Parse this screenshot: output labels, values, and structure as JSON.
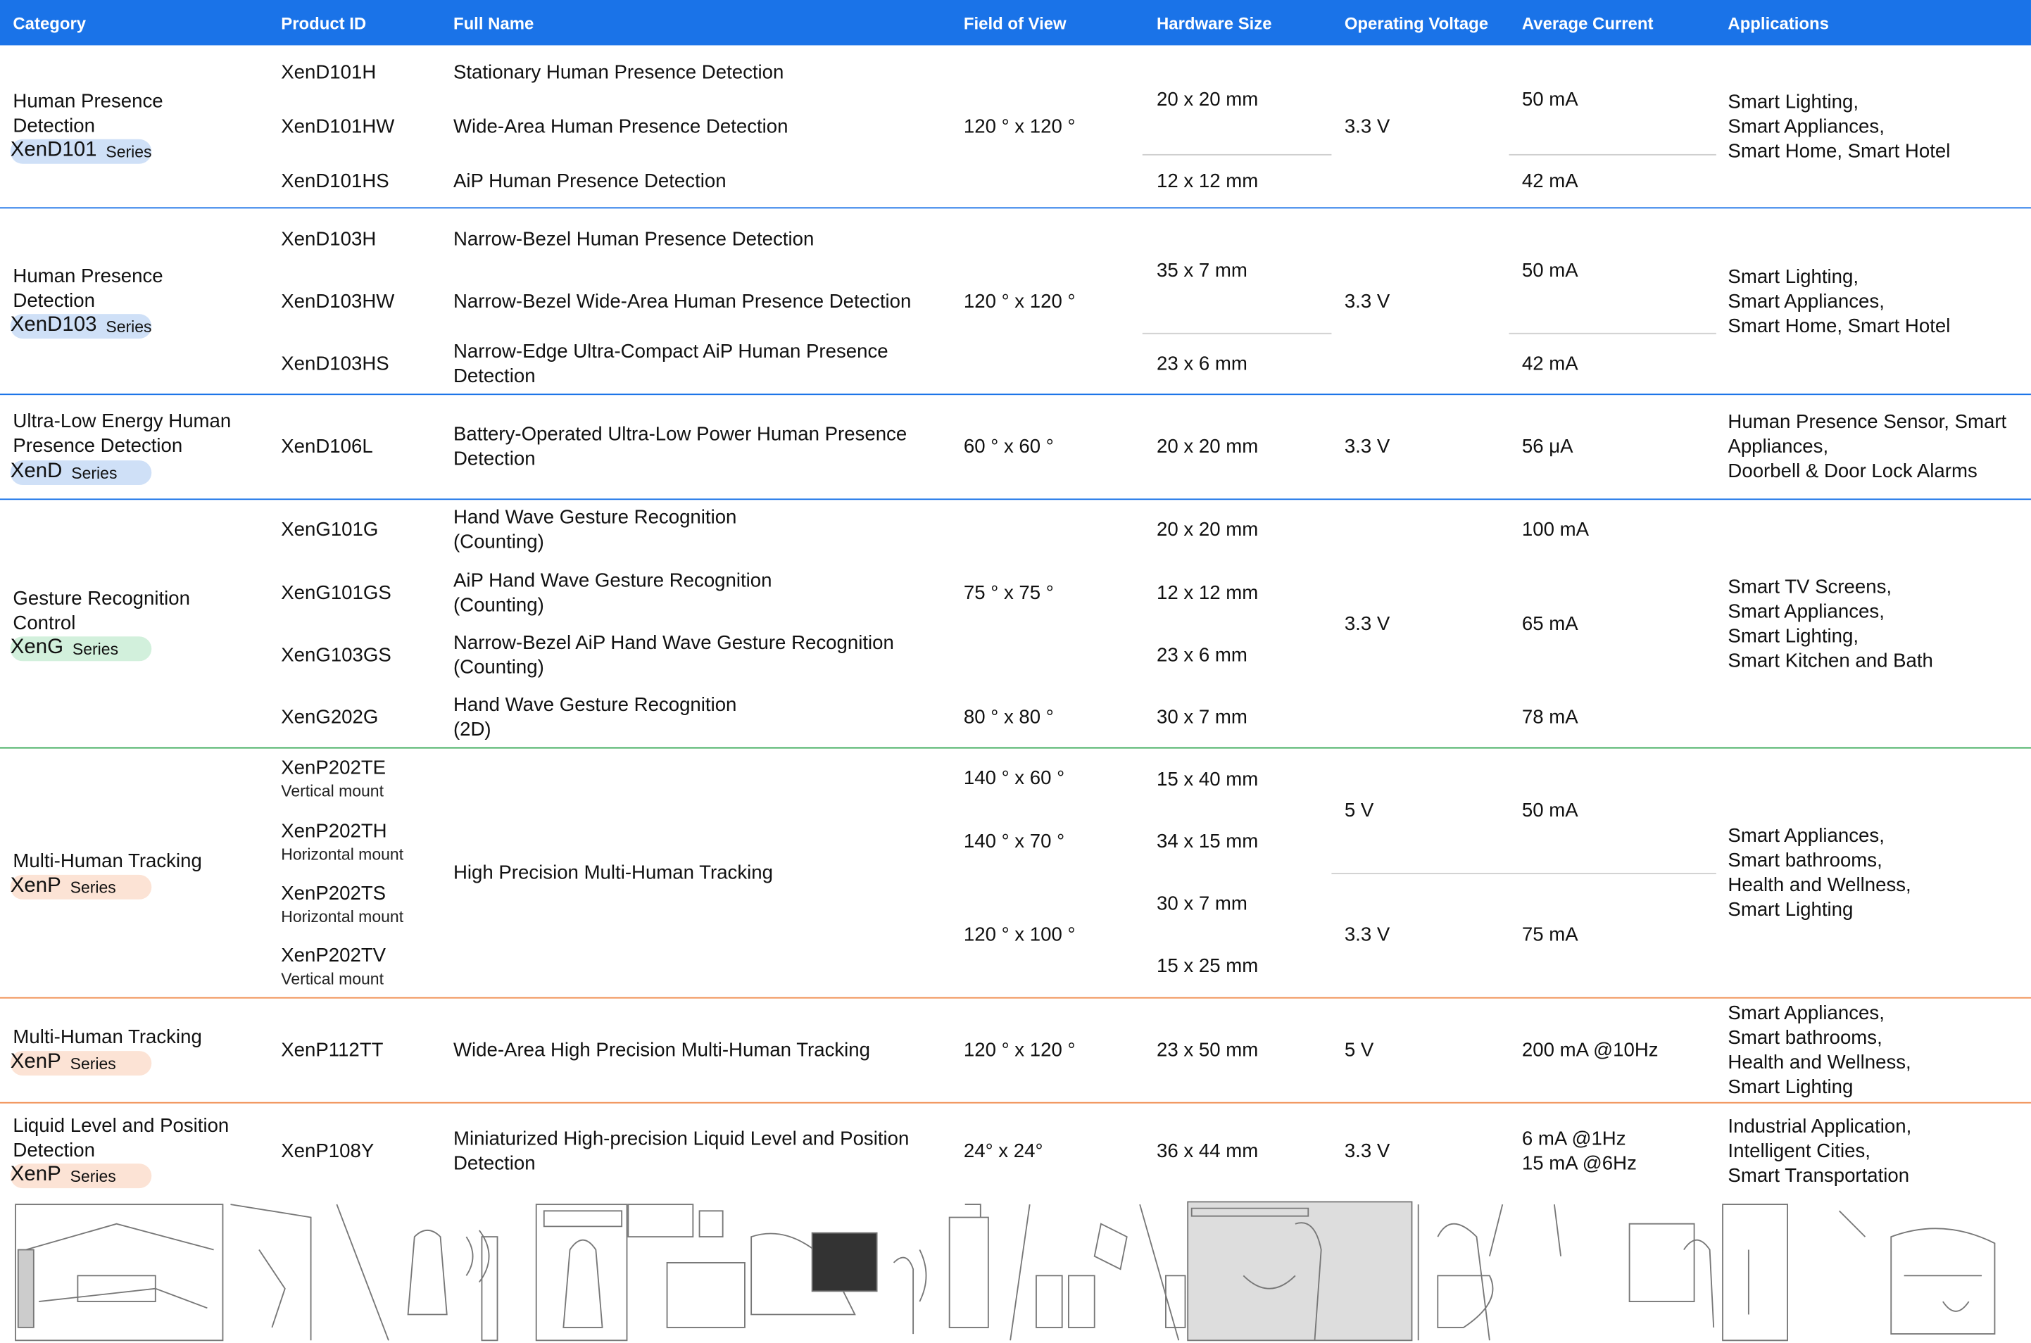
{
  "header": [
    "Category",
    "Product ID",
    "Full Name",
    "Field of View",
    "Hardware Size",
    "Operating Voltage",
    "Average Current",
    "Applications"
  ],
  "series_label": "Series",
  "groups": [
    {
      "category": "Human Presence\nDetection",
      "series": "XenD101",
      "products": [
        "XenD101H",
        "XenD101HW",
        "XenD101HS"
      ],
      "names": [
        "Stationary Human Presence Detection",
        "Wide-Area Human Presence Detection",
        "AiP Human Presence Detection"
      ],
      "fov": [
        "120 ° x  120 °"
      ],
      "sizes": [
        "20  x 20 mm",
        "12  x 12 mm"
      ],
      "voltage": [
        "3.3 V"
      ],
      "current": [
        "50 mA",
        "42 mA"
      ],
      "applications": "Smart Lighting,\nSmart Appliances,\nSmart Home, Smart Hotel"
    },
    {
      "category": "Human Presence\nDetection",
      "series": "XenD103",
      "products": [
        "XenD103H",
        "XenD103HW",
        "XenD103HS"
      ],
      "names": [
        "Narrow-Bezel Human Presence Detection",
        "Narrow-Bezel Wide-Area Human Presence Detection",
        "Narrow-Edge Ultra-Compact AiP Human Presence\nDetection"
      ],
      "fov": [
        "120 ° x  120 °"
      ],
      "sizes": [
        "35  x 7 mm",
        "23  x 6 mm"
      ],
      "voltage": [
        "3.3 V"
      ],
      "current": [
        "50 mA",
        "42 mA"
      ],
      "applications": "Smart Lighting,\nSmart Appliances,\nSmart Home, Smart Hotel"
    },
    {
      "category": "Ultra-Low Energy Human\nPresence Detection",
      "series": "XenD",
      "products": [
        "XenD106L"
      ],
      "names": [
        "Battery-Operated Ultra-Low Power Human Presence\nDetection"
      ],
      "fov": [
        "60 ° x  60 °"
      ],
      "sizes": [
        "20  x 20 mm"
      ],
      "voltage": [
        "3.3 V"
      ],
      "current": [
        "56 μA"
      ],
      "applications": "Human Presence Sensor, Smart\nAppliances,\nDoorbell & Door Lock Alarms"
    },
    {
      "category": "Gesture Recognition\nControl",
      "series": "XenG",
      "products": [
        "XenG101G",
        "XenG101GS",
        "XenG103GS",
        "XenG202G"
      ],
      "names": [
        "Hand Wave Gesture Recognition\n(Counting)",
        "AiP Hand Wave Gesture Recognition\n(Counting)",
        "Narrow-Bezel AiP Hand Wave Gesture Recognition\n(Counting)",
        "Hand Wave Gesture Recognition\n(2D)"
      ],
      "fov": [
        "75 ° x  75 °",
        "80 ° x  80 °"
      ],
      "sizes": [
        "20  x 20 mm",
        "12 x 12 mm",
        "23 x 6 mm",
        "30  x 7 mm"
      ],
      "voltage": [
        "3.3 V"
      ],
      "current": [
        "100 mA",
        "65 mA",
        "78 mA"
      ],
      "applications": "Smart TV Screens,\nSmart Appliances,\nSmart Lighting,\nSmart Kitchen and Bath"
    },
    {
      "category": "Multi-Human Tracking",
      "series": "XenP",
      "products": [
        "XenP202TE",
        "XenP202TH",
        "XenP202TS",
        "XenP202TV"
      ],
      "mounts": [
        "Vertical mount",
        "Horizontal mount",
        "Horizontal mount",
        "Vertical mount"
      ],
      "names": [
        "High Precision Multi-Human Tracking"
      ],
      "fov": [
        "140 ° x  60 °",
        "140 ° x  70 °",
        "120 ° x  100 °"
      ],
      "sizes": [
        "15  x 40 mm",
        "34  x 15 mm",
        "30  x 7 mm",
        "15  x 25 mm"
      ],
      "voltage": [
        "5 V",
        "3.3 V"
      ],
      "current": [
        "50 mA",
        "75 mA"
      ],
      "applications": "Smart Appliances,\nSmart bathrooms,\nHealth and Wellness,\nSmart Lighting"
    },
    {
      "category": "Multi-Human Tracking",
      "series": "XenP",
      "products": [
        "XenP112TT"
      ],
      "names": [
        "Wide-Area High Precision Multi-Human Tracking"
      ],
      "fov": [
        "120 ° x  120 °"
      ],
      "sizes": [
        "23  x 50 mm"
      ],
      "voltage": [
        "5 V"
      ],
      "current": [
        "200 mA @10Hz"
      ],
      "applications": "Smart Appliances,\nSmart bathrooms,\nHealth and Wellness,\nSmart Lighting"
    },
    {
      "category": "Liquid Level and Position\nDetection",
      "series": "XenP",
      "products": [
        "XenP108Y"
      ],
      "names": [
        "Miniaturized High-precision Liquid Level and Position\nDetection"
      ],
      "fov": [
        "24° x  24°"
      ],
      "sizes": [
        "36  x 44 mm"
      ],
      "voltage": [
        "3.3 V"
      ],
      "current": [
        "6 mA @1Hz\n15 mA @6Hz"
      ],
      "applications": "Industrial Application,\nIntelligent Cities,\nSmart Transportation"
    }
  ]
}
